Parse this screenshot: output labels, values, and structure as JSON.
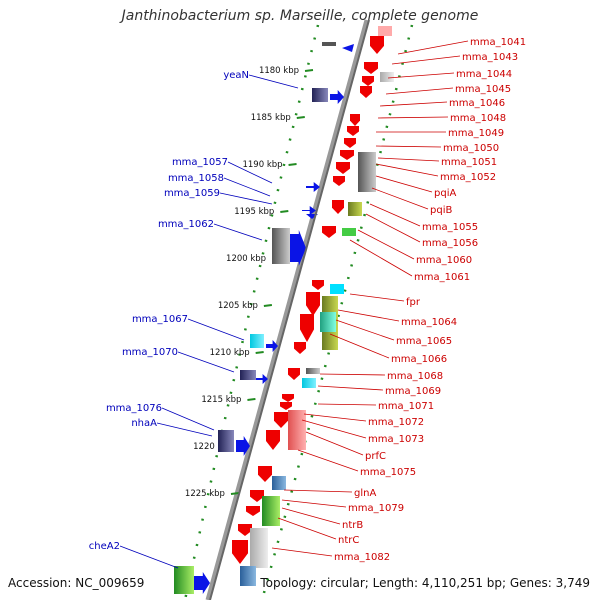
{
  "header": {
    "title": "Janthinobacterium sp. Marseille, complete genome"
  },
  "footer": {
    "accession": "Accession: NC_009659",
    "topology": "Topology: circular; Length: 4,110,251 bp; Genes: 3,749"
  },
  "axis": {
    "ticks": [
      {
        "label": "1180 kbp",
        "kbp": 1180
      },
      {
        "label": "1185 kbp",
        "kbp": 1185
      },
      {
        "label": "1190 kbp",
        "kbp": 1190
      },
      {
        "label": "1195 kbp",
        "kbp": 1195
      },
      {
        "label": "1200 kbp",
        "kbp": 1200
      },
      {
        "label": "1205 kbp",
        "kbp": 1205
      },
      {
        "label": "1210 kbp",
        "kbp": 1210
      },
      {
        "label": "1215 kbp",
        "kbp": 1215
      },
      {
        "label": "1220 kbp",
        "kbp": 1220
      },
      {
        "label": "1225 kbp",
        "kbp": 1225
      }
    ]
  },
  "colors": {
    "forward_label": "#0000bb",
    "reverse_label": "#cc0000",
    "forward_arrow": "#0a14e6",
    "reverse_arrow": "#ee0000",
    "backbone": "#888888",
    "ticks": "#228b22"
  },
  "forward_labels": [
    {
      "name": "yeaN"
    },
    {
      "name": "mma_1057"
    },
    {
      "name": "mma_1058"
    },
    {
      "name": "mma_1059"
    },
    {
      "name": "mma_1062"
    },
    {
      "name": "mma_1067"
    },
    {
      "name": "mma_1070"
    },
    {
      "name": "mma_1076"
    },
    {
      "name": "nhaA"
    },
    {
      "name": "cheA2"
    }
  ],
  "reverse_labels": [
    {
      "name": "mma_1041"
    },
    {
      "name": "mma_1043"
    },
    {
      "name": "mma_1044"
    },
    {
      "name": "mma_1045"
    },
    {
      "name": "mma_1046"
    },
    {
      "name": "mma_1048"
    },
    {
      "name": "mma_1049"
    },
    {
      "name": "mma_1050"
    },
    {
      "name": "mma_1051"
    },
    {
      "name": "mma_1052"
    },
    {
      "name": "pqiA"
    },
    {
      "name": "pqiB"
    },
    {
      "name": "mma_1055"
    },
    {
      "name": "mma_1056"
    },
    {
      "name": "mma_1060"
    },
    {
      "name": "mma_1061"
    },
    {
      "name": "fpr"
    },
    {
      "name": "mma_1064"
    },
    {
      "name": "mma_1065"
    },
    {
      "name": "mma_1066"
    },
    {
      "name": "mma_1068"
    },
    {
      "name": "mma_1069"
    },
    {
      "name": "mma_1071"
    },
    {
      "name": "mma_1072"
    },
    {
      "name": "mma_1073"
    },
    {
      "name": "prfC"
    },
    {
      "name": "mma_1075"
    },
    {
      "name": "glnA"
    },
    {
      "name": "mma_1079"
    },
    {
      "name": "ntrB"
    },
    {
      "name": "ntrC"
    },
    {
      "name": "mma_1082"
    }
  ]
}
